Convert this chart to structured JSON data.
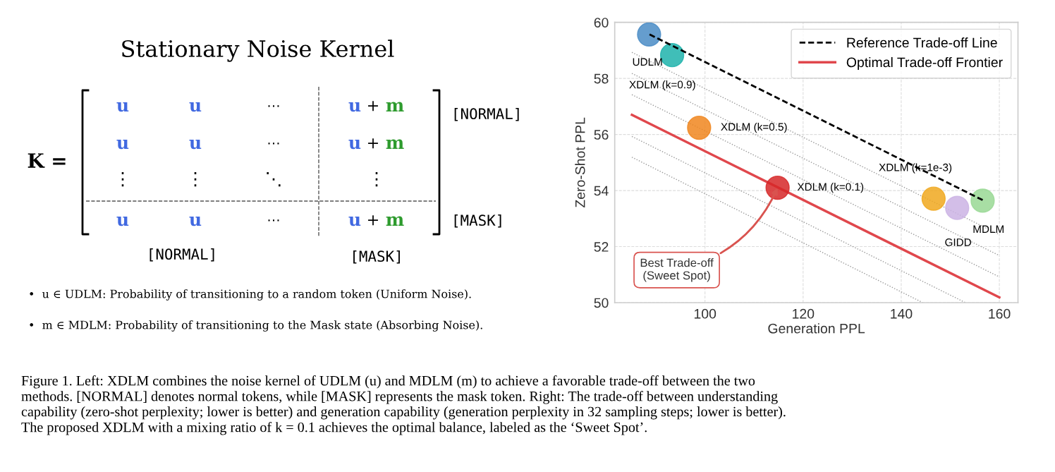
{
  "chart_data": [
    {
      "type": "other",
      "title": "Stationary Noise Kernel",
      "annotations": [
        "K =",
        "u",
        "u",
        "⋯",
        "u",
        "+",
        "m",
        "u",
        "u",
        "⋯",
        "u",
        "+",
        "m",
        "⋮",
        "⋮",
        "⋱",
        "⋮",
        "u",
        "u",
        "⋯",
        "u",
        "+",
        "m",
        "[NORMAL]",
        "[MASK]",
        "[NORMAL]",
        "[MASK]",
        "•  u ∈ UDLM: Probability of transitioning to a random token (Uniform Noise).",
        "•  m ∈ MDLM: Probability of transitioning to the Mask state (Absorbing Noise)."
      ]
    },
    {
      "type": "scatter",
      "xlabel": "Generation PPL",
      "ylabel": "Zero-Shot PPL",
      "xlim": [
        81.6,
        163.8
      ],
      "ylim": [
        50,
        60
      ],
      "xticks": [
        100,
        120,
        140,
        160
      ],
      "yticks": [
        50,
        52,
        54,
        56,
        58,
        60
      ],
      "grid": true,
      "legend": "top right",
      "series": [
        {
          "type": "line",
          "color": "#999999",
          "line_style": "dotted",
          "x": [
            85.1,
            160
          ],
          "values": [
            58.93,
            52.43
          ]
        },
        {
          "type": "line",
          "color": "#999999",
          "line_style": "dotted",
          "x": [
            85.1,
            160
          ],
          "values": [
            58.18,
            51.68
          ]
        },
        {
          "type": "line",
          "color": "#999999",
          "line_style": "dotted",
          "x": [
            85.1,
            160
          ],
          "values": [
            57.42,
            50.92
          ]
        },
        {
          "type": "line",
          "color": "#999999",
          "line_style": "dotted",
          "x": [
            85.1,
            153.1
          ],
          "values": [
            55.93,
            50
          ]
        },
        {
          "type": "line",
          "color": "#999999",
          "line_style": "dotted",
          "x": [
            85.1,
            144.4
          ],
          "values": [
            55.19,
            50
          ]
        },
        {
          "name": "Reference Trade-off Line",
          "type": "line",
          "color": "#000000",
          "line_style": "dashed",
          "x": [
            88.7,
            156.6
          ],
          "values": [
            59.57,
            53.66
          ]
        },
        {
          "name": "Optimal Trade-off Frontier",
          "type": "line",
          "color": "#e0474c",
          "line_style": "solid",
          "x": [
            85.1,
            160
          ],
          "values": [
            56.7,
            50.19
          ]
        },
        {
          "type": "scatter",
          "marker": "circle",
          "x": [
            88.6,
            93.3,
            98.8,
            114.8,
            146.6,
            151.4,
            156.6
          ],
          "values": [
            59.57,
            58.83,
            56.24,
            54.1,
            53.71,
            53.38,
            53.64
          ],
          "colors": [
            "#4a8cc6",
            "#1fb3ab",
            "#f0861f",
            "#d62728",
            "#f0a81e",
            "#cbb3e4",
            "#99d894"
          ]
        }
      ],
      "annotations": [
        {
          "text": "UDLM",
          "x": 88.6,
          "y": 59.57
        },
        {
          "text": "XDLM (k=0.9)",
          "x": 93.3,
          "y": 58.83
        },
        {
          "text": "XDLM (k=0.5)",
          "x": 98.8,
          "y": 56.24
        },
        {
          "text": "XDLM (k=0.1)",
          "x": 114.8,
          "y": 54.1
        },
        {
          "text": "XDLM (k=1e-3)",
          "x": 146.6,
          "y": 53.71
        },
        {
          "text": "GIDD",
          "x": 151.4,
          "y": 53.38
        },
        {
          "text": "MDLM",
          "x": 156.6,
          "y": 53.64
        },
        {
          "text": "Best Trade-off\n(Sweet Spot)",
          "x": 114.8,
          "y": 54.1
        },
        "Figure 1. Left: XDLM combines the noise kernel of UDLM (u) and MDLM (m) to achieve a favorable trade-off between the two\nmethods. [NORMAL] denotes normal tokens, while [MASK] represents the mask token. Right: The trade-off between understanding\ncapability (zero-shot perplexity; lower is better) and generation capability (generation perplexity in 32 sampling steps; lower is better).\nThe proposed XDLM with a mixing ratio of k = 0.1 achieves the optimal balance, labeled as the ‘Sweet Spot’."
      ]
    }
  ]
}
